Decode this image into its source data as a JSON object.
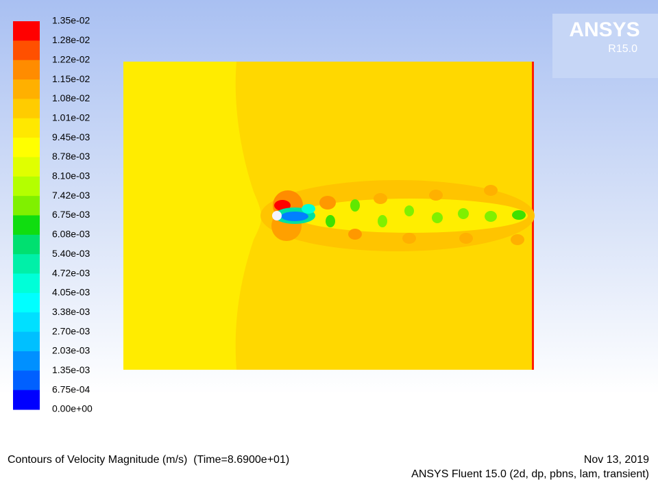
{
  "colorbar": {
    "labels": [
      "1.35e-02",
      "1.28e-02",
      "1.22e-02",
      "1.15e-02",
      "1.08e-02",
      "1.01e-02",
      "9.45e-03",
      "8.78e-03",
      "8.10e-03",
      "7.42e-03",
      "6.75e-03",
      "6.08e-03",
      "5.40e-03",
      "4.72e-03",
      "4.05e-03",
      "3.38e-03",
      "2.70e-03",
      "2.03e-03",
      "1.35e-03",
      "6.75e-04",
      "0.00e+00"
    ],
    "colors": [
      "#ff0000",
      "#ff5000",
      "#ff8c00",
      "#ffb000",
      "#ffcc00",
      "#ffe800",
      "#ffff00",
      "#e0ff00",
      "#b4ff00",
      "#80f000",
      "#10dd10",
      "#00e070",
      "#00f0a8",
      "#00ffd8",
      "#00ffff",
      "#00e0ff",
      "#00c0ff",
      "#0090ff",
      "#0060ff",
      "#0000ff"
    ]
  },
  "logo": {
    "brand": "ANSYS",
    "version": "R15.0"
  },
  "footer": {
    "title": "Contours of Velocity Magnitude (m/s)  (Time=8.6900e+01)",
    "date": "Nov 13, 2019",
    "solver": "ANSYS Fluent 15.0 (2d, dp, pbns, lam, transient)"
  }
}
